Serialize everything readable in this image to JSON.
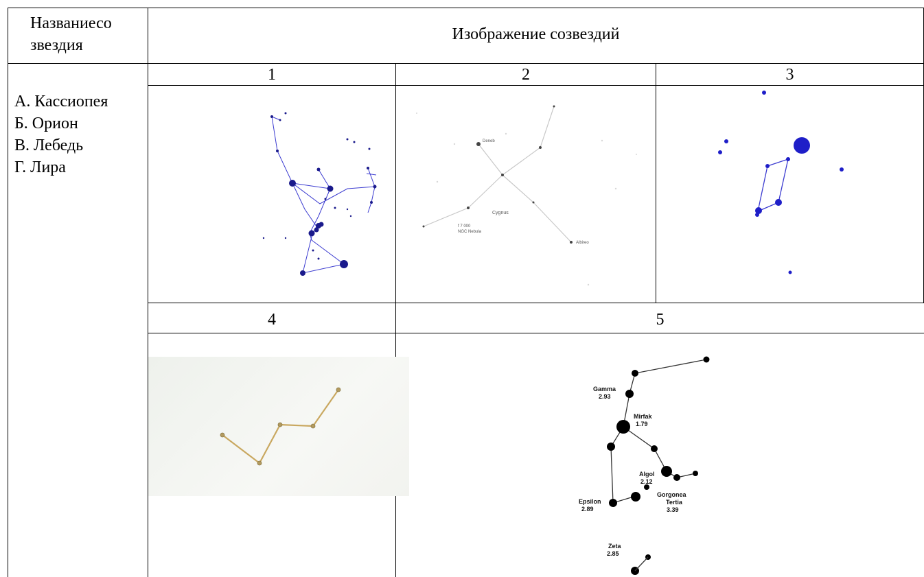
{
  "table": {
    "header_col1_line1": "Названиесо",
    "header_col1_line2": "звездия",
    "header_col2": "Изображение созвездий"
  },
  "options": {
    "items": [
      "А. Кассиопея",
      "Б. Орион",
      "В. Лебедь",
      "Г. Лира"
    ]
  },
  "cells": {
    "labels": [
      "1",
      "2",
      "3",
      "4",
      "5"
    ]
  },
  "figure2": {
    "labels": [
      "Deneb",
      "Cygnus",
      "Albireo",
      "f 7 000",
      "NGC Nebula"
    ]
  },
  "figure5": {
    "stars": [
      {
        "name": "Gamma",
        "mag": "2.93"
      },
      {
        "name": "Mirfak",
        "mag": "1.79"
      },
      {
        "name": "Algol",
        "mag": "2.12"
      },
      {
        "name": "Gorgonea",
        "extra": "Tertia",
        "mag": "3.39"
      },
      {
        "name": "Epsilon",
        "mag": "2.89"
      },
      {
        "name": "Zeta",
        "mag": "2.85"
      }
    ]
  }
}
